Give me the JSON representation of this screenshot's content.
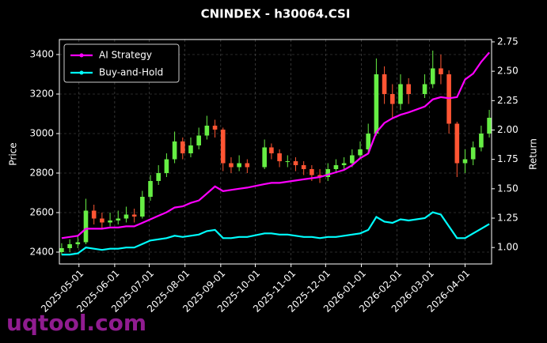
{
  "chart_data": {
    "type": "candlestick",
    "title": "CNINDEX - h30064.CSI",
    "y_label": "Price",
    "y2_label": "Return",
    "watermark": "uqtool.com",
    "x": [
      "2025-04-16",
      "2025-04-23",
      "2025-04-30",
      "2025-05-07",
      "2025-05-14",
      "2025-05-21",
      "2025-05-28",
      "2025-06-04",
      "2025-06-11",
      "2025-06-18",
      "2025-06-25",
      "2025-07-02",
      "2025-07-09",
      "2025-07-16",
      "2025-07-23",
      "2025-07-30",
      "2025-08-06",
      "2025-08-13",
      "2025-08-20",
      "2025-08-27",
      "2025-09-03",
      "2025-09-10",
      "2025-09-17",
      "2025-09-24",
      "2025-10-09",
      "2025-10-15",
      "2025-10-22",
      "2025-10-29",
      "2025-11-05",
      "2025-11-12",
      "2025-11-19",
      "2025-11-26",
      "2025-12-03",
      "2025-12-10",
      "2025-12-17",
      "2025-12-24",
      "2025-12-31",
      "2026-01-07",
      "2026-01-14",
      "2026-01-21",
      "2026-01-28",
      "2026-02-04",
      "2026-02-11",
      "2026-02-25",
      "2026-03-04",
      "2026-03-11",
      "2026-03-18",
      "2026-03-25",
      "2026-04-01",
      "2026-04-08",
      "2026-04-15",
      "2026-04-22"
    ],
    "open": [
      2400,
      2420,
      2440,
      2450,
      2610,
      2570,
      2550,
      2560,
      2570,
      2590,
      2580,
      2680,
      2760,
      2800,
      2870,
      2960,
      2900,
      2940,
      2990,
      3040,
      3020,
      2850,
      2830,
      2850,
      2830,
      2930,
      2900,
      2860,
      2860,
      2840,
      2820,
      2790,
      2780,
      2820,
      2840,
      2850,
      2890,
      2920,
      3000,
      3300,
      3200,
      3150,
      3250,
      3200,
      3250,
      3330,
      3300,
      3050,
      2850,
      2870,
      2930,
      3000
    ],
    "high": [
      2445,
      2465,
      2480,
      2670,
      2640,
      2600,
      2600,
      2610,
      2630,
      2620,
      2710,
      2790,
      2840,
      2900,
      3010,
      2980,
      2980,
      3030,
      3090,
      3070,
      3030,
      2880,
      2890,
      2870,
      2970,
      2950,
      2920,
      2890,
      2880,
      2860,
      2840,
      2820,
      2850,
      2870,
      2880,
      2920,
      2960,
      3050,
      3380,
      3340,
      3250,
      3300,
      3280,
      3300,
      3420,
      3400,
      3320,
      3060,
      2920,
      2960,
      3040,
      3120
    ],
    "low": [
      2385,
      2400,
      2420,
      2440,
      2540,
      2520,
      2530,
      2540,
      2550,
      2550,
      2570,
      2660,
      2740,
      2780,
      2850,
      2870,
      2880,
      2920,
      2970,
      2980,
      2810,
      2800,
      2810,
      2800,
      2820,
      2870,
      2830,
      2830,
      2810,
      2790,
      2760,
      2750,
      2760,
      2800,
      2820,
      2830,
      2870,
      2900,
      2990,
      3150,
      3080,
      3120,
      3150,
      3180,
      3230,
      3250,
      3000,
      2780,
      2800,
      2840,
      2910,
      2980
    ],
    "close": [
      2420,
      2440,
      2450,
      2610,
      2570,
      2550,
      2560,
      2570,
      2590,
      2580,
      2680,
      2760,
      2800,
      2870,
      2960,
      2900,
      2940,
      2990,
      3040,
      3020,
      2850,
      2830,
      2850,
      2830,
      2930,
      2900,
      2860,
      2860,
      2840,
      2820,
      2790,
      2780,
      2820,
      2840,
      2850,
      2890,
      2920,
      3000,
      3300,
      3200,
      3150,
      3250,
      3200,
      3250,
      3330,
      3300,
      3050,
      2850,
      2870,
      2930,
      3000,
      3080
    ],
    "up_color": "#66ee44",
    "down_color": "#ff5533",
    "series": [
      {
        "name": "AI Strategy",
        "color": "#ff00ff",
        "axis": "y2",
        "type": "line",
        "values": [
          1.08,
          1.09,
          1.1,
          1.16,
          1.16,
          1.16,
          1.17,
          1.17,
          1.18,
          1.18,
          1.21,
          1.24,
          1.27,
          1.3,
          1.34,
          1.35,
          1.38,
          1.4,
          1.46,
          1.52,
          1.48,
          1.49,
          1.5,
          1.51,
          1.54,
          1.55,
          1.55,
          1.56,
          1.57,
          1.58,
          1.59,
          1.6,
          1.62,
          1.64,
          1.66,
          1.7,
          1.76,
          1.8,
          1.98,
          2.06,
          2.1,
          2.13,
          2.15,
          2.2,
          2.26,
          2.28,
          2.27,
          2.28,
          2.43,
          2.48,
          2.58,
          2.66
        ]
      },
      {
        "name": "Buy-and-Hold",
        "color": "#00ffff",
        "axis": "y2",
        "type": "line",
        "values": [
          0.94,
          0.94,
          0.95,
          1.0,
          0.99,
          0.98,
          0.99,
          0.99,
          1.0,
          1.0,
          1.03,
          1.06,
          1.07,
          1.08,
          1.1,
          1.09,
          1.1,
          1.11,
          1.14,
          1.15,
          1.08,
          1.08,
          1.09,
          1.09,
          1.12,
          1.12,
          1.11,
          1.11,
          1.1,
          1.09,
          1.09,
          1.08,
          1.09,
          1.09,
          1.1,
          1.11,
          1.12,
          1.15,
          1.26,
          1.22,
          1.21,
          1.24,
          1.23,
          1.25,
          1.3,
          1.28,
          1.18,
          1.08,
          1.08,
          1.12,
          1.16,
          1.2
        ]
      }
    ],
    "xlim": [
      "2025-04-14",
      "2026-04-24"
    ],
    "xticks": [
      "2025-05-01",
      "2025-06-01",
      "2025-07-01",
      "2025-08-01",
      "2025-09-01",
      "2025-10-01",
      "2025-11-01",
      "2025-12-01",
      "2026-01-01",
      "2026-02-01",
      "2026-03-01",
      "2026-04-01"
    ],
    "ylim": [
      2340,
      3476
    ],
    "yticks": [
      2400,
      2600,
      2800,
      3000,
      3200,
      3400
    ],
    "y2lim": [
      0.86,
      2.77
    ],
    "y2ticks": [
      {
        "value": 1.0,
        "label": "1.00"
      },
      {
        "value": 1.25,
        "label": "1.25"
      },
      {
        "value": 1.5,
        "label": "1.50"
      },
      {
        "value": 1.75,
        "label": "1.75"
      },
      {
        "value": 2.0,
        "label": "2.00"
      },
      {
        "value": 2.25,
        "label": "2.25"
      },
      {
        "value": 2.5,
        "label": "2.50"
      },
      {
        "value": 2.75,
        "label": "2.75"
      }
    ],
    "grid": true,
    "legend": "upper left"
  }
}
